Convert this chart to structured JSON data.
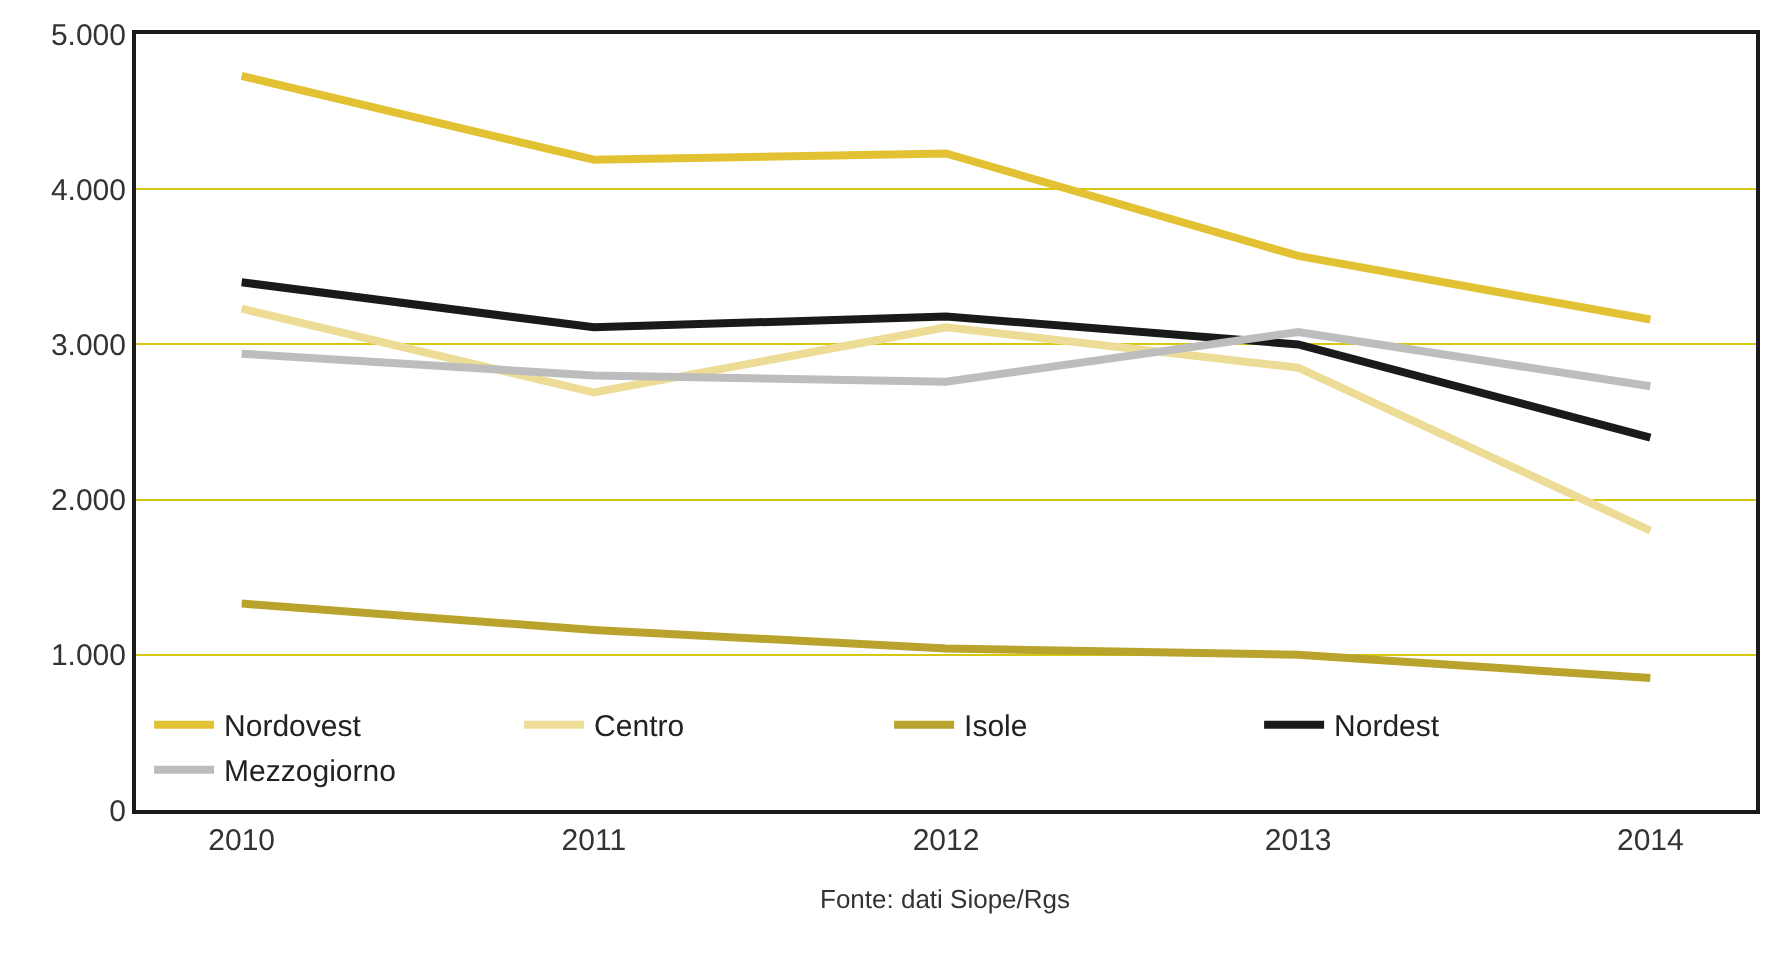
{
  "chart_data": {
    "type": "line",
    "categories": [
      "2010",
      "2011",
      "2012",
      "2013",
      "2014"
    ],
    "series": [
      {
        "name": "Nordovest",
        "color": "#e2c233",
        "values": [
          4730,
          4190,
          4230,
          3570,
          3160
        ]
      },
      {
        "name": "Centro",
        "color": "#ecdc96",
        "values": [
          3230,
          2690,
          3110,
          2850,
          1800
        ]
      },
      {
        "name": "Isole",
        "color": "#b9a32c",
        "values": [
          1330,
          1160,
          1040,
          1000,
          850
        ]
      },
      {
        "name": "Nordest",
        "color": "#1a1a1a",
        "values": [
          3400,
          3110,
          3180,
          3000,
          2400
        ]
      },
      {
        "name": "Mezzogiorno",
        "color": "#bdbdbd",
        "values": [
          2940,
          2800,
          2760,
          3080,
          2730
        ]
      }
    ],
    "ylim": [
      0,
      5000
    ],
    "yticks": [
      0,
      {
        "value": 1000,
        "label": "1.000"
      },
      {
        "value": 2000,
        "label": "2.000"
      },
      {
        "value": 3000,
        "label": "3.000"
      },
      {
        "value": 4000,
        "label": "4.000"
      },
      {
        "value": 5000,
        "label": "5.000"
      }
    ],
    "grid": "y",
    "legend": "bottom left",
    "marker": "none",
    "line_style": "solid",
    "annotations": [
      "Fonte: dati Siope/Rgs"
    ]
  }
}
